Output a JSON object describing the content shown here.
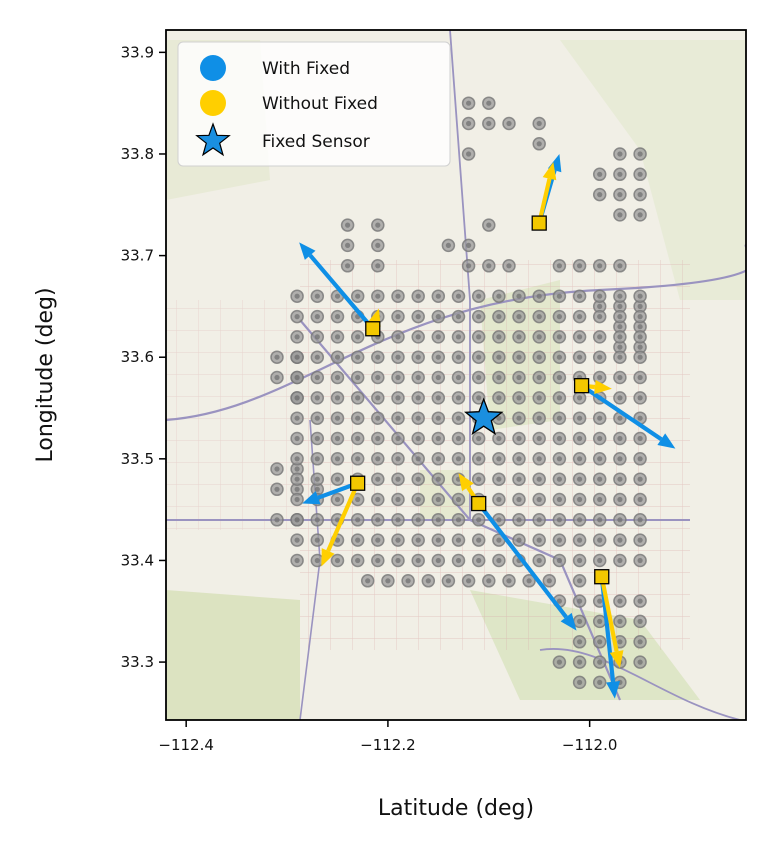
{
  "chart_data": {
    "type": "scatter",
    "title": "",
    "xlabel": "Latitude (deg)",
    "ylabel": "Longitude (deg)",
    "xlim": [
      -112.42,
      -111.845
    ],
    "ylim": [
      33.243,
      33.922
    ],
    "xticks": [
      -112.4,
      -112.2,
      -112.0
    ],
    "xtick_labels": [
      "−112.4",
      "−112.2",
      "−112.0"
    ],
    "yticks": [
      33.3,
      33.4,
      33.5,
      33.6,
      33.7,
      33.8,
      33.9
    ],
    "ytick_labels": [
      "33.3",
      "33.4",
      "33.5",
      "33.6",
      "33.7",
      "33.8",
      "33.9"
    ],
    "grid": false,
    "background": "street map basemap",
    "legend": {
      "placement": "top-left",
      "entries": [
        {
          "label": "With Fixed",
          "marker": "circle",
          "color": "#0f8fe6"
        },
        {
          "label": "Without Fixed",
          "marker": "circle",
          "color": "#ffcf00"
        },
        {
          "label": "Fixed Sensor",
          "marker": "star",
          "color": "#1a8fe0"
        }
      ]
    },
    "colors": {
      "with_fixed": "#0f8fe6",
      "without_fixed": "#ffcf00",
      "fixed_sensor": "#1a8fe0",
      "candidate": "#888888",
      "sensor_square": "#f3c800"
    },
    "candidate_grid": {
      "description": "gray candidate sensor locations on a ~0.02 deg grid",
      "points": [
        [
          -112.12,
          33.85
        ],
        [
          -112.1,
          33.85
        ],
        [
          -112.12,
          33.83
        ],
        [
          -112.1,
          33.83
        ],
        [
          -112.08,
          33.83
        ],
        [
          -112.05,
          33.83
        ],
        [
          -112.05,
          33.81
        ],
        [
          -112.12,
          33.8
        ],
        [
          -111.97,
          33.8
        ],
        [
          -111.95,
          33.8
        ],
        [
          -111.99,
          33.78
        ],
        [
          -111.97,
          33.78
        ],
        [
          -111.95,
          33.78
        ],
        [
          -111.99,
          33.76
        ],
        [
          -111.97,
          33.76
        ],
        [
          -111.95,
          33.76
        ],
        [
          -111.97,
          33.74
        ],
        [
          -111.95,
          33.74
        ],
        [
          -112.24,
          33.73
        ],
        [
          -112.21,
          33.73
        ],
        [
          -112.1,
          33.73
        ],
        [
          -112.24,
          33.71
        ],
        [
          -112.21,
          33.71
        ],
        [
          -112.14,
          33.71
        ],
        [
          -112.12,
          33.71
        ],
        [
          -112.24,
          33.69
        ],
        [
          -112.21,
          33.69
        ],
        [
          -112.12,
          33.69
        ],
        [
          -112.1,
          33.69
        ],
        [
          -112.08,
          33.69
        ],
        [
          -112.03,
          33.69
        ],
        [
          -112.01,
          33.69
        ],
        [
          -111.99,
          33.69
        ],
        [
          -111.97,
          33.69
        ],
        [
          -111.99,
          33.65
        ],
        [
          -111.97,
          33.65
        ],
        [
          -111.95,
          33.65
        ],
        [
          -111.97,
          33.63
        ],
        [
          -111.95,
          33.63
        ],
        [
          -111.97,
          33.61
        ],
        [
          -111.95,
          33.61
        ],
        [
          -112.31,
          33.6
        ],
        [
          -112.29,
          33.6
        ],
        [
          -112.31,
          33.58
        ],
        [
          -112.29,
          33.58
        ],
        [
          -112.29,
          33.56
        ],
        [
          -112.29,
          33.49
        ],
        [
          -112.31,
          33.49
        ],
        [
          -112.29,
          33.47
        ],
        [
          -112.31,
          33.47
        ],
        [
          -112.27,
          33.47
        ],
        [
          -112.29,
          33.44
        ],
        [
          -112.31,
          33.44
        ],
        [
          -112.22,
          33.38
        ],
        [
          -112.2,
          33.38
        ],
        [
          -112.18,
          33.38
        ],
        [
          -112.16,
          33.38
        ],
        [
          -112.14,
          33.38
        ],
        [
          -112.12,
          33.38
        ],
        [
          -112.1,
          33.38
        ],
        [
          -112.08,
          33.38
        ],
        [
          -112.06,
          33.38
        ],
        [
          -112.04,
          33.38
        ],
        [
          -112.01,
          33.38
        ],
        [
          -112.03,
          33.36
        ],
        [
          -112.01,
          33.36
        ],
        [
          -111.99,
          33.36
        ],
        [
          -111.97,
          33.36
        ],
        [
          -111.95,
          33.36
        ],
        [
          -112.01,
          33.34
        ],
        [
          -111.99,
          33.34
        ],
        [
          -111.97,
          33.34
        ],
        [
          -111.95,
          33.34
        ],
        [
          -112.01,
          33.32
        ],
        [
          -111.99,
          33.32
        ],
        [
          -111.97,
          33.32
        ],
        [
          -111.95,
          33.32
        ],
        [
          -112.03,
          33.3
        ],
        [
          -112.01,
          33.3
        ],
        [
          -111.99,
          33.3
        ],
        [
          -111.97,
          33.3
        ],
        [
          -111.95,
          33.3
        ],
        [
          -112.01,
          33.28
        ],
        [
          -111.99,
          33.28
        ],
        [
          -111.97,
          33.28
        ]
      ],
      "dense_block": {
        "x_from": -112.29,
        "x_to": -111.95,
        "y_from": 33.4,
        "y_to": 33.67,
        "step": 0.02
      }
    },
    "fixed_sensor": {
      "x": -112.105,
      "y": 33.54,
      "label": "Fixed Sensor"
    },
    "sensors": [
      {
        "x": -112.05,
        "y": 33.732,
        "with_fixed": {
          "dx": 0.02,
          "dy": 0.068
        },
        "without_fixed": {
          "dx": 0.014,
          "dy": 0.06
        }
      },
      {
        "x": -112.215,
        "y": 33.628,
        "with_fixed": {
          "dx": -0.073,
          "dy": 0.085
        },
        "without_fixed": {
          "dx": 0.006,
          "dy": 0.02
        }
      },
      {
        "x": -112.008,
        "y": 33.572,
        "with_fixed": {
          "dx": 0.093,
          "dy": -0.062
        },
        "without_fixed": {
          "dx": 0.03,
          "dy": -0.003
        }
      },
      {
        "x": -112.23,
        "y": 33.476,
        "with_fixed": {
          "dx": -0.055,
          "dy": -0.02
        },
        "without_fixed": {
          "dx": -0.036,
          "dy": -0.082
        }
      },
      {
        "x": -112.11,
        "y": 33.456,
        "with_fixed": {
          "dx": 0.097,
          "dy": -0.125
        },
        "without_fixed": {
          "dx": -0.02,
          "dy": 0.03
        }
      },
      {
        "x": -111.988,
        "y": 33.384,
        "with_fixed": {
          "dx": 0.013,
          "dy": -0.12
        },
        "without_fixed": {
          "dx": 0.018,
          "dy": -0.09
        }
      }
    ]
  }
}
